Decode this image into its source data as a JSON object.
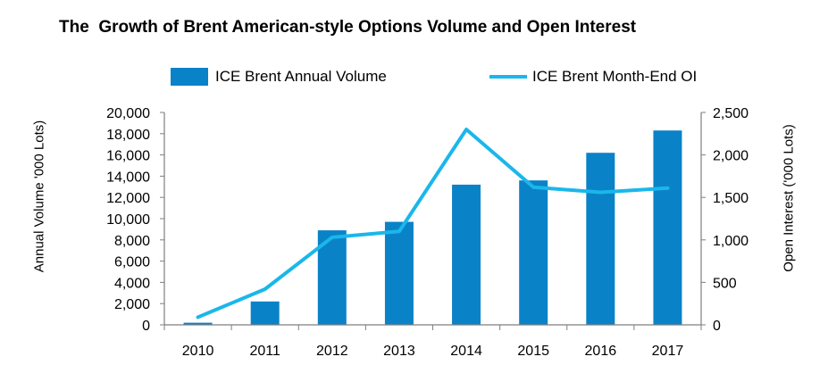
{
  "title": "The  Growth of Brent American-style Options Volume and Open Interest",
  "colors": {
    "bar": "#0a82c8",
    "line": "#1ab7ea",
    "axis": "#7f7f7f"
  },
  "legend": {
    "bar_label": "ICE Brent Annual Volume",
    "line_label": "ICE Brent Month-End OI",
    "placement": "top"
  },
  "chart_data": {
    "type": "bar",
    "categories": [
      "2010",
      "2011",
      "2012",
      "2013",
      "2014",
      "2015",
      "2016",
      "2017"
    ],
    "series": [
      {
        "name": "ICE Brent Annual Volume",
        "type": "bar",
        "axis": "left",
        "values": [
          200,
          2200,
          8900,
          9700,
          13200,
          13600,
          16200,
          18300
        ]
      },
      {
        "name": "ICE Brent Month-End OI",
        "type": "line",
        "axis": "right",
        "values": [
          90,
          420,
          1030,
          1100,
          2300,
          1620,
          1560,
          1610
        ]
      }
    ],
    "ylabel": "Annual Volume '000 Lots)",
    "y2label": "Open Interest  ('000 Lots)",
    "ylim": [
      0,
      20000
    ],
    "y2lim": [
      0,
      2500
    ],
    "yticks": [
      "0",
      "2,000",
      "4,000",
      "6,000",
      "8,000",
      "10,000",
      "12,000",
      "14,000",
      "16,000",
      "18,000",
      "20,000"
    ],
    "y2ticks": [
      "0",
      "500",
      "1,000",
      "1,500",
      "2,000",
      "2,500"
    ],
    "grid": false
  }
}
